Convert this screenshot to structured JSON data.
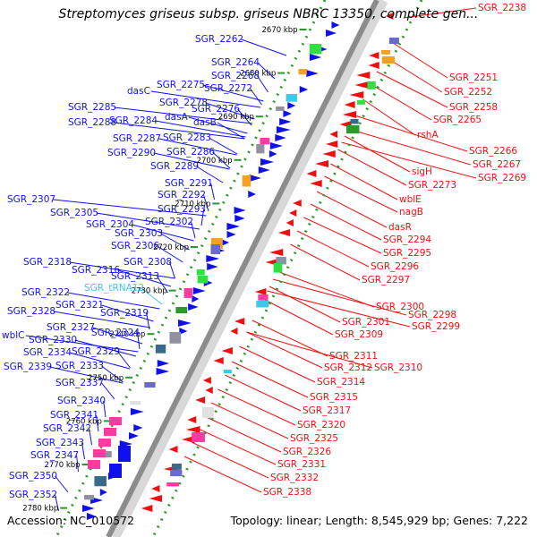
{
  "title": "Streptomyces griseus subsp. griseus NBRC 13350, complete gen...",
  "footer": {
    "accession": "Accession: NC_010572",
    "summary": "Topology: linear; Length: 8,545,929 bp; Genes: 7,222"
  },
  "colors": {
    "plus_strand": "#1010ee",
    "minus_strand": "#ee1010",
    "rna": "#40c8e8",
    "axis": "#8c8c8c",
    "tick": "#2a9a2a"
  },
  "axis_ticks": [
    "2670 kbp",
    "2680 kbp",
    "2690 kbp",
    "2700 kbp",
    "2710 kbp",
    "2720 kbp",
    "2730 kbp",
    "2740 kbp",
    "2750 kbp",
    "2760 kbp",
    "2770 kbp",
    "2780 kbp"
  ],
  "left_labels": [
    "SGR_2262",
    "SGR_2264",
    "SGR_2268",
    "dasC",
    "SGR_2275",
    "SGR_2272",
    "SGR_2278",
    "SGR_2276",
    "SGR_2285",
    "SGR_2288",
    "SGR_2284",
    "dasA",
    "dasB",
    "SGR_2287",
    "SGR_2283",
    "SGR_2290",
    "SGR_2286",
    "SGR_2289",
    "SGR_2291",
    "SGR_2292",
    "SGR_2293",
    "SGR_2307",
    "SGR_2305",
    "SGR_2304",
    "SGR_2302",
    "SGR_2303",
    "SGR_2306",
    "SGR_2318",
    "SGR_2308",
    "SGR_2316",
    "SGR_2313",
    "SGR_tRNA12",
    "SGR_2322",
    "SGR_2321",
    "SGR_2319",
    "SGR_2328",
    "SGR_2327",
    "wblC",
    "SGR_2324",
    "SGR_2330",
    "SGR_2334",
    "SGR_2329",
    "SGR_2339",
    "SGR_2333",
    "SGR_2337",
    "SGR_2340",
    "SGR_2341",
    "SGR_2342",
    "SGR_2343",
    "SGR_2347",
    "SGR_2350",
    "SGR_2352"
  ],
  "right_labels": [
    "SGR_2238",
    "SGR_2251",
    "SGR_2252",
    "SGR_2258",
    "SGR_2265",
    "SGR_2266",
    "rshA",
    "SGR_2267",
    "sigH",
    "SGR_2269",
    "SGR_2273",
    "wblE",
    "nagB",
    "dasR",
    "SGR_2294",
    "SGR_2295",
    "SGR_2296",
    "SGR_2297",
    "SGR_2300",
    "SGR_2298",
    "SGR_2301",
    "SGR_2299",
    "SGR_2309",
    "SGR_2311",
    "SGR_2312",
    "SGR_2310",
    "SGR_2314",
    "SGR_2315",
    "SGR_2317",
    "SGR_2320",
    "SGR_2325",
    "SGR_2326",
    "SGR_2331",
    "SGR_2332",
    "SGR_2338"
  ]
}
